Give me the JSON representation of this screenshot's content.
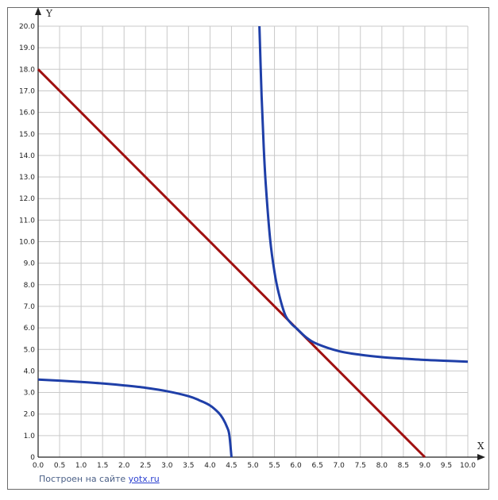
{
  "chart_data": {
    "type": "line",
    "title": "",
    "xlabel": "X",
    "ylabel": "Y",
    "xlim": [
      0,
      10
    ],
    "ylim": [
      0,
      20
    ],
    "grid": true,
    "x_ticks": [
      "0.0",
      "0.5",
      "1.0",
      "1.5",
      "2.0",
      "2.5",
      "3.0",
      "3.5",
      "4.0",
      "4.5",
      "5.0",
      "5.5",
      "6.0",
      "6.5",
      "7.0",
      "7.5",
      "8.0",
      "8.5",
      "9.0",
      "9.5",
      "10.0"
    ],
    "y_ticks": [
      "0",
      "1.0",
      "2.0",
      "3.0",
      "4.0",
      "5.0",
      "6.0",
      "7.0",
      "8.0",
      "9.0",
      "10.0",
      "11.0",
      "12.0",
      "13.0",
      "14.0",
      "15.0",
      "16.0",
      "17.0",
      "18.0",
      "19.0",
      "20.0"
    ],
    "series": [
      {
        "color": "#a01010",
        "x": [
          0,
          9
        ],
        "y": [
          18,
          0
        ]
      },
      {
        "color": "#1f3fa8",
        "x": [
          0,
          0.5,
          1.0,
          1.5,
          2.0,
          2.5,
          3.0,
          3.5,
          3.75,
          4.0,
          4.2,
          4.3,
          4.4,
          4.45,
          4.5
        ],
        "y": [
          3.6,
          3.55,
          3.49,
          3.42,
          3.33,
          3.22,
          3.06,
          2.83,
          2.64,
          2.4,
          2.06,
          1.79,
          1.38,
          1.03,
          0
        ]
      },
      {
        "color": "#1f3fa8",
        "x": [
          5.15,
          5.2,
          5.25,
          5.3,
          5.4,
          5.5,
          5.6,
          5.75,
          5.9,
          6.0,
          6.25,
          6.5,
          7.0,
          7.5,
          8.0,
          8.5,
          9.0,
          9.5,
          10.0
        ],
        "y": [
          20.0,
          16.8,
          14.4,
          12.6,
          10.1,
          8.6,
          7.6,
          6.6,
          6.18,
          6.0,
          5.54,
          5.25,
          4.92,
          4.75,
          4.64,
          4.57,
          4.51,
          4.47,
          4.43
        ]
      }
    ]
  },
  "credit": {
    "prefix": "Построен на сайте ",
    "link": "yotx.ru"
  }
}
